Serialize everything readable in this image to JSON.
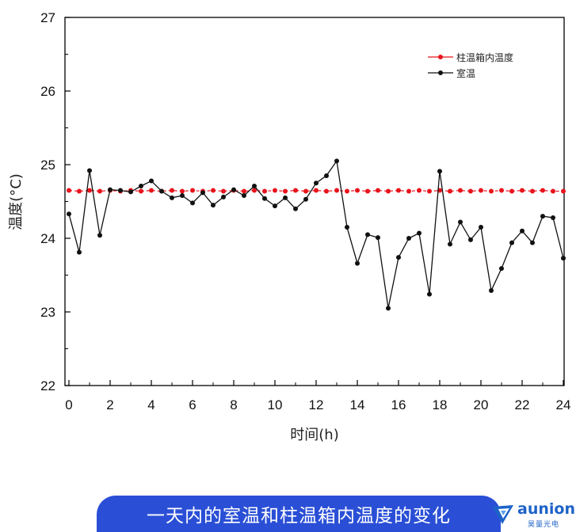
{
  "chart_data": {
    "type": "line",
    "title": "",
    "xlabel": "时间(h)",
    "ylabel": "温度(°C)",
    "xlim": [
      0,
      24
    ],
    "ylim": [
      22,
      27
    ],
    "x_ticks": [
      "0",
      "2",
      "4",
      "6",
      "8",
      "10",
      "12",
      "14",
      "16",
      "18",
      "20",
      "22",
      "24"
    ],
    "y_ticks": [
      "22",
      "23",
      "24",
      "25",
      "26",
      "27"
    ],
    "legend_position": "top-right",
    "series": [
      {
        "name": "柱温箱内温度",
        "color": "#e8141c",
        "x": [
          0,
          0.5,
          1,
          1.5,
          2,
          2.5,
          3,
          3.5,
          4,
          4.5,
          5,
          5.5,
          6,
          6.5,
          7,
          7.5,
          8,
          8.5,
          9,
          9.5,
          10,
          10.5,
          11,
          11.5,
          12,
          12.5,
          13,
          13.5,
          14,
          14.5,
          15,
          15.5,
          16,
          16.5,
          17,
          17.5,
          18,
          18.5,
          19,
          19.5,
          20,
          20.5,
          21,
          21.5,
          22,
          22.5,
          23,
          23.5,
          24
        ],
        "values": [
          24.65,
          24.64,
          24.65,
          24.64,
          24.65,
          24.64,
          24.65,
          24.64,
          24.65,
          24.64,
          24.65,
          24.64,
          24.65,
          24.64,
          24.65,
          24.64,
          24.65,
          24.64,
          24.65,
          24.64,
          24.65,
          24.64,
          24.65,
          24.64,
          24.65,
          24.64,
          24.65,
          24.64,
          24.65,
          24.64,
          24.65,
          24.64,
          24.65,
          24.64,
          24.65,
          24.64,
          24.65,
          24.64,
          24.65,
          24.64,
          24.65,
          24.64,
          24.65,
          24.64,
          24.65,
          24.64,
          24.65,
          24.64,
          24.64
        ]
      },
      {
        "name": "室温",
        "color": "#111111",
        "x": [
          0,
          0.5,
          1,
          1.5,
          2,
          2.5,
          3,
          3.5,
          4,
          4.5,
          5,
          5.5,
          6,
          6.5,
          7,
          7.5,
          8,
          8.5,
          9,
          9.5,
          10,
          10.5,
          11,
          11.5,
          12,
          12.5,
          13,
          13.5,
          14,
          14.5,
          15,
          15.5,
          16,
          16.5,
          17,
          17.5,
          18,
          18.5,
          19,
          19.5,
          20,
          20.5,
          21,
          21.5,
          22,
          22.5,
          23,
          23.5,
          24
        ],
        "values": [
          24.33,
          23.81,
          24.92,
          24.04,
          24.66,
          24.65,
          24.63,
          24.71,
          24.78,
          24.64,
          24.55,
          24.58,
          24.48,
          24.62,
          24.45,
          24.56,
          24.66,
          24.58,
          24.71,
          24.54,
          24.44,
          24.55,
          24.4,
          24.53,
          24.75,
          24.85,
          25.05,
          24.15,
          23.66,
          24.05,
          24.01,
          23.05,
          23.74,
          24.0,
          24.07,
          23.24,
          24.91,
          23.92,
          24.22,
          23.98,
          24.15,
          23.29,
          23.59,
          23.94,
          24.1,
          23.94,
          24.3,
          24.28,
          23.73
        ]
      }
    ]
  },
  "caption": "一天内的室温和柱温箱内温度的变化",
  "brand": {
    "name": "aunion",
    "sub": "昊量光电",
    "color": "#1d63c8"
  },
  "banner_color": "#2a4fd6"
}
